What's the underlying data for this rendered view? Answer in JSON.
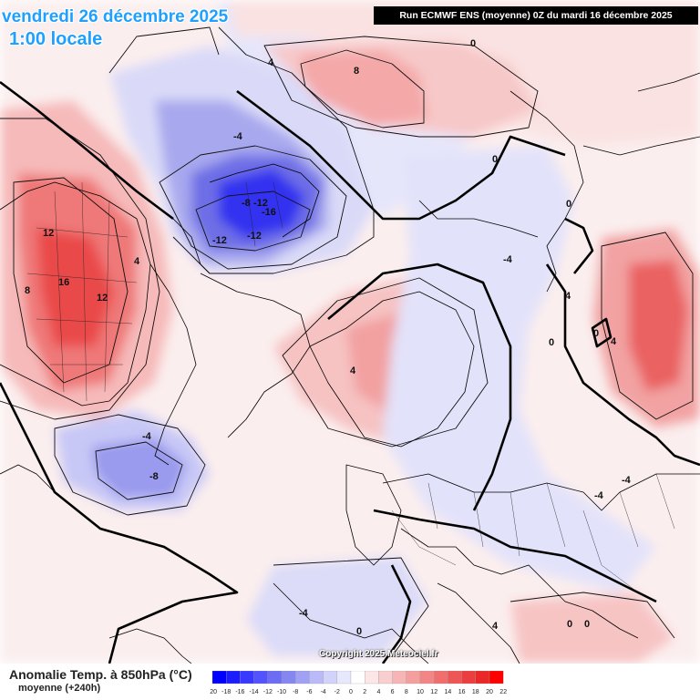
{
  "header": {
    "date_title": "vendredi 26 décembre 2025",
    "time_title": "1:00 locale",
    "run_info": "Run ECMWF ENS (moyenne) 0Z du mardi 16 décembre 2025"
  },
  "footer": {
    "variable_title": "Anomalie Temp. à 850hPa (°C)",
    "variable_subtitle": "moyenne   (+240h)",
    "copyright": "Copyright 2025 Meteociel.fr"
  },
  "legend": {
    "ticks": [
      "-20",
      "-18",
      "-16",
      "-14",
      "-12",
      "-10",
      "-8",
      "-6",
      "-4",
      "-2",
      "0",
      "2",
      "4",
      "6",
      "8",
      "10",
      "12",
      "14",
      "16",
      "18",
      "20",
      "22"
    ],
    "colors": [
      "#0000ff",
      "#1c1cff",
      "#3838ff",
      "#5252ff",
      "#6c6cf4",
      "#8686f0",
      "#a0a0f4",
      "#babaf8",
      "#d2d2fa",
      "#e8e8fc",
      "#ffffff",
      "#fce6e6",
      "#f9cece",
      "#f6b6b6",
      "#f49e9e",
      "#f28686",
      "#f06e6e",
      "#ee5656",
      "#ec3e3e",
      "#ea2828",
      "#ff0000"
    ]
  },
  "contour_labels": [
    {
      "text": "0"
    },
    {
      "text": "4"
    },
    {
      "text": "8"
    },
    {
      "text": "-4"
    },
    {
      "text": "-8"
    },
    {
      "text": "-12"
    },
    {
      "text": "-16"
    },
    {
      "text": "-12"
    },
    {
      "text": "-12"
    },
    {
      "text": "12"
    },
    {
      "text": "16"
    },
    {
      "text": "12"
    },
    {
      "text": "8"
    },
    {
      "text": "4"
    },
    {
      "text": "4"
    },
    {
      "text": "-4"
    },
    {
      "text": "-8"
    },
    {
      "text": "0"
    },
    {
      "text": "0"
    },
    {
      "text": "-4"
    },
    {
      "text": "0"
    },
    {
      "text": "4"
    },
    {
      "text": "4"
    },
    {
      "text": "0"
    },
    {
      "text": "-4"
    },
    {
      "text": "-4"
    },
    {
      "text": "-4"
    },
    {
      "text": "0"
    },
    {
      "text": "0"
    },
    {
      "text": "0"
    },
    {
      "text": "4"
    }
  ]
}
